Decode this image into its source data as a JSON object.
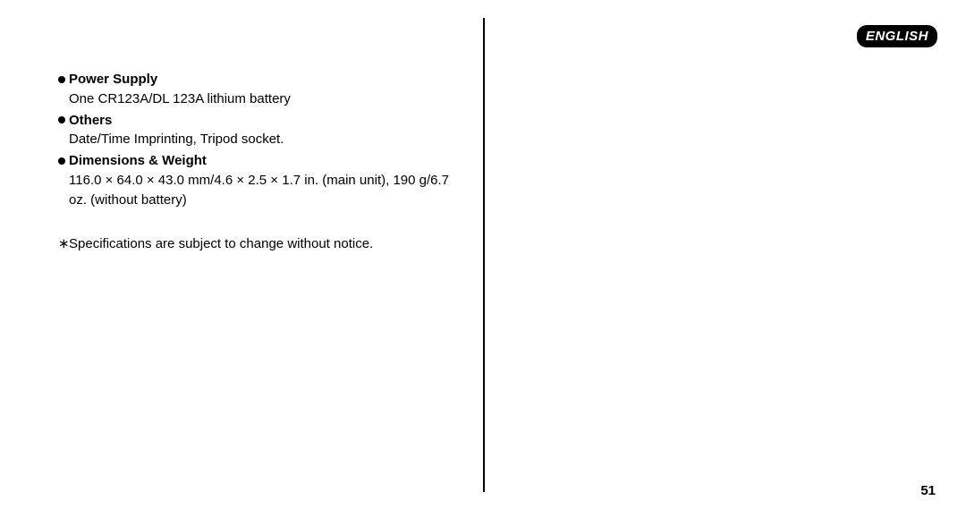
{
  "badge": {
    "label": "ENGLISH"
  },
  "specs": {
    "items": [
      {
        "heading": "Power Supply",
        "body": "One CR123A/DL 123A lithium battery"
      },
      {
        "heading": "Others",
        "body": "Date/Time Imprinting, Tripod socket."
      },
      {
        "heading": "Dimensions & Weight",
        "body": "116.0 × 64.0 × 43.0 mm/4.6 × 2.5 × 1.7 in. (main unit), 190 g/6.7 oz. (without battery)"
      }
    ],
    "note_mark": "∗",
    "note": "Specifications are subject to change without notice."
  },
  "page_number": "51"
}
